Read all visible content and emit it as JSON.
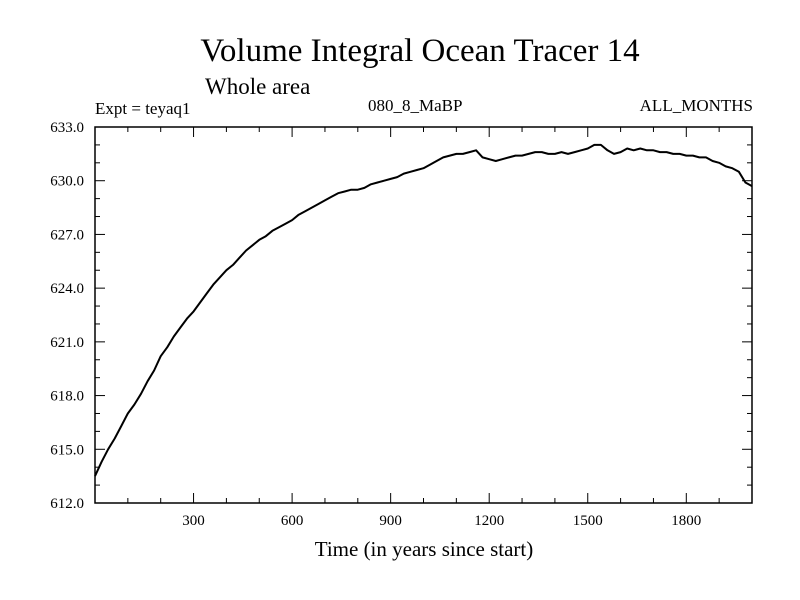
{
  "chart_data": {
    "type": "line",
    "title": "Volume Integral Ocean Tracer 14",
    "subtitle": "Whole area",
    "annotations": {
      "expt": "Expt = teyaq1",
      "period": "080_8_MaBP",
      "months": "ALL_MONTHS"
    },
    "xlabel": "Time (in years since start)",
    "ylabel": "",
    "xlim": [
      0,
      2000
    ],
    "ylim": [
      612.0,
      633.0
    ],
    "x_ticks": [
      300,
      600,
      900,
      1200,
      1500,
      1800
    ],
    "x_tick_labels": [
      "300",
      "600",
      "900",
      "1200",
      "1500",
      "1800"
    ],
    "y_ticks": [
      612,
      615,
      618,
      621,
      624,
      627,
      630,
      633
    ],
    "y_tick_labels": [
      "612.0",
      "615.0",
      "618.0",
      "621.0",
      "624.0",
      "627.0",
      "630.0",
      "633.0"
    ],
    "grid": false,
    "line_color": "#000000",
    "series": [
      {
        "x": [
          0,
          20,
          40,
          60,
          80,
          100,
          120,
          140,
          160,
          180,
          200,
          220,
          240,
          260,
          280,
          300,
          320,
          340,
          360,
          380,
          400,
          420,
          440,
          460,
          480,
          500,
          520,
          540,
          560,
          580,
          600,
          620,
          640,
          660,
          680,
          700,
          720,
          740,
          760,
          780,
          800,
          820,
          840,
          860,
          880,
          900,
          920,
          940,
          960,
          980,
          1000,
          1020,
          1040,
          1060,
          1080,
          1100,
          1120,
          1140,
          1160,
          1180,
          1200,
          1220,
          1240,
          1260,
          1280,
          1300,
          1320,
          1340,
          1360,
          1380,
          1400,
          1420,
          1440,
          1460,
          1480,
          1500,
          1520,
          1540,
          1560,
          1580,
          1600,
          1620,
          1640,
          1660,
          1680,
          1700,
          1720,
          1740,
          1760,
          1780,
          1800,
          1820,
          1840,
          1860,
          1880,
          1900,
          1920,
          1940,
          1960,
          1980,
          2000
        ],
        "values": [
          613.5,
          614.3,
          615.0,
          615.6,
          616.3,
          617.0,
          617.5,
          618.1,
          618.8,
          619.4,
          620.2,
          620.7,
          621.3,
          621.8,
          622.3,
          622.7,
          623.2,
          623.7,
          624.2,
          624.6,
          625.0,
          625.3,
          625.7,
          626.1,
          626.4,
          626.7,
          626.9,
          627.2,
          627.4,
          627.6,
          627.8,
          628.1,
          628.3,
          628.5,
          628.7,
          628.9,
          629.1,
          629.3,
          629.4,
          629.5,
          629.5,
          629.6,
          629.8,
          629.9,
          630.0,
          630.1,
          630.2,
          630.4,
          630.5,
          630.6,
          630.7,
          630.9,
          631.1,
          631.3,
          631.4,
          631.5,
          631.5,
          631.6,
          631.7,
          631.3,
          631.2,
          631.1,
          631.2,
          631.3,
          631.4,
          631.4,
          631.5,
          631.6,
          631.6,
          631.5,
          631.5,
          631.6,
          631.5,
          631.6,
          631.7,
          631.8,
          632.0,
          632.0,
          631.7,
          631.5,
          631.6,
          631.8,
          631.7,
          631.8,
          631.7,
          631.7,
          631.6,
          631.6,
          631.5,
          631.5,
          631.4,
          631.4,
          631.3,
          631.3,
          631.1,
          631.0,
          630.8,
          630.7,
          630.5,
          629.9,
          629.7
        ]
      }
    ]
  }
}
